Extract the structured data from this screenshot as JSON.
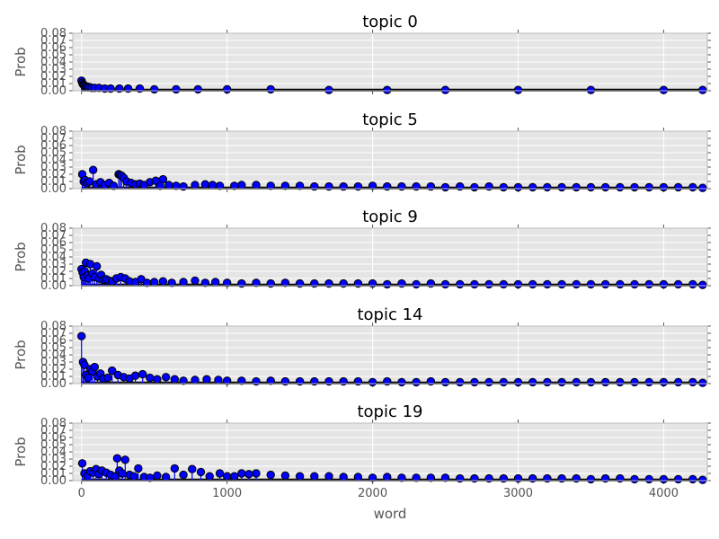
{
  "figure": {
    "xlabel": "word",
    "ylabel": "Prob"
  },
  "chart_data": [
    {
      "type": "stem",
      "title": "topic 0",
      "xlabel": "",
      "ylabel": "Prob",
      "xlim": [
        -60,
        4300
      ],
      "ylim": [
        0.0,
        0.08
      ],
      "yticks": [
        "0.00",
        "0.01",
        "0.02",
        "0.03",
        "0.04",
        "0.05",
        "0.06",
        "0.07",
        "0.08"
      ],
      "xticks": [],
      "grid": true,
      "n_words": 4270,
      "x": [
        0,
        5,
        10,
        15,
        20,
        28,
        36,
        45,
        55,
        70,
        90,
        120,
        160,
        200,
        260,
        320,
        400,
        500,
        650,
        800,
        1000,
        1300,
        1700,
        2100,
        2500,
        3000,
        3500,
        4000,
        4268
      ],
      "values": [
        0.014,
        0.011,
        0.009,
        0.008,
        0.007,
        0.006,
        0.006,
        0.005,
        0.005,
        0.004,
        0.004,
        0.004,
        0.003,
        0.003,
        0.003,
        0.003,
        0.003,
        0.002,
        0.002,
        0.002,
        0.002,
        0.002,
        0.001,
        0.001,
        0.001,
        0.001,
        0.001,
        0.001,
        0.001
      ]
    },
    {
      "type": "stem",
      "title": "topic 5",
      "xlabel": "",
      "ylabel": "Prob",
      "xlim": [
        -60,
        4300
      ],
      "ylim": [
        0.0,
        0.08
      ],
      "yticks": [
        "0.00",
        "0.01",
        "0.02",
        "0.03",
        "0.04",
        "0.05",
        "0.06",
        "0.07",
        "0.08"
      ],
      "xticks": [],
      "grid": true,
      "n_words": 4270,
      "x": [
        5,
        15,
        25,
        40,
        55,
        80,
        100,
        130,
        160,
        190,
        220,
        255,
        265,
        275,
        290,
        310,
        340,
        370,
        400,
        430,
        470,
        510,
        540,
        560,
        600,
        650,
        700,
        780,
        850,
        900,
        950,
        1050,
        1100,
        1200,
        1300,
        1400,
        1500,
        1600,
        1700,
        1800,
        1900,
        2000,
        2100,
        2200,
        2300,
        2400,
        2500,
        2600,
        2700,
        2800,
        2900,
        3000,
        3100,
        3200,
        3300,
        3400,
        3500,
        3600,
        3700,
        3800,
        3900,
        4000,
        4100,
        4200,
        4268
      ],
      "values": [
        0.02,
        0.01,
        0.012,
        0.008,
        0.01,
        0.026,
        0.006,
        0.009,
        0.005,
        0.008,
        0.004,
        0.02,
        0.019,
        0.018,
        0.015,
        0.01,
        0.008,
        0.006,
        0.007,
        0.005,
        0.009,
        0.011,
        0.004,
        0.013,
        0.005,
        0.004,
        0.003,
        0.005,
        0.006,
        0.005,
        0.004,
        0.004,
        0.005,
        0.005,
        0.004,
        0.004,
        0.004,
        0.003,
        0.003,
        0.003,
        0.003,
        0.004,
        0.003,
        0.003,
        0.003,
        0.003,
        0.002,
        0.003,
        0.002,
        0.003,
        0.002,
        0.002,
        0.002,
        0.002,
        0.002,
        0.002,
        0.002,
        0.002,
        0.002,
        0.002,
        0.002,
        0.002,
        0.002,
        0.002,
        0.001
      ]
    },
    {
      "type": "stem",
      "title": "topic 9",
      "xlabel": "",
      "ylabel": "Prob",
      "xlim": [
        -60,
        4300
      ],
      "ylim": [
        0.0,
        0.08
      ],
      "yticks": [
        "0.00",
        "0.01",
        "0.02",
        "0.03",
        "0.04",
        "0.05",
        "0.06",
        "0.07",
        "0.08"
      ],
      "xticks": [],
      "grid": true,
      "n_words": 4270,
      "x": [
        0,
        8,
        15,
        22,
        30,
        40,
        50,
        60,
        75,
        90,
        105,
        120,
        135,
        150,
        170,
        190,
        210,
        240,
        270,
        300,
        330,
        370,
        410,
        450,
        500,
        560,
        620,
        700,
        780,
        850,
        920,
        1000,
        1100,
        1200,
        1300,
        1400,
        1500,
        1600,
        1700,
        1800,
        1900,
        2000,
        2100,
        2200,
        2300,
        2400,
        2500,
        2600,
        2700,
        2800,
        2900,
        3000,
        3100,
        3200,
        3300,
        3400,
        3500,
        3600,
        3700,
        3800,
        3900,
        4000,
        4100,
        4200,
        4268
      ],
      "values": [
        0.023,
        0.018,
        0.012,
        0.02,
        0.032,
        0.014,
        0.01,
        0.03,
        0.017,
        0.012,
        0.027,
        0.01,
        0.015,
        0.008,
        0.009,
        0.007,
        0.006,
        0.01,
        0.012,
        0.01,
        0.006,
        0.005,
        0.009,
        0.004,
        0.005,
        0.006,
        0.004,
        0.005,
        0.007,
        0.004,
        0.005,
        0.004,
        0.003,
        0.004,
        0.003,
        0.004,
        0.003,
        0.003,
        0.003,
        0.003,
        0.003,
        0.003,
        0.002,
        0.003,
        0.002,
        0.003,
        0.002,
        0.002,
        0.002,
        0.002,
        0.002,
        0.002,
        0.002,
        0.002,
        0.002,
        0.002,
        0.002,
        0.002,
        0.002,
        0.002,
        0.002,
        0.002,
        0.002,
        0.002,
        0.001
      ]
    },
    {
      "type": "stem",
      "title": "topic 14",
      "xlabel": "",
      "ylabel": "Prob",
      "xlim": [
        -60,
        4300
      ],
      "ylim": [
        0.0,
        0.08
      ],
      "yticks": [
        "0.00",
        "0.01",
        "0.02",
        "0.03",
        "0.04",
        "0.05",
        "0.06",
        "0.07",
        "0.08"
      ],
      "xticks": [],
      "grid": true,
      "n_words": 4270,
      "x": [
        0,
        10,
        20,
        30,
        45,
        60,
        75,
        90,
        110,
        130,
        150,
        180,
        210,
        250,
        290,
        330,
        370,
        420,
        470,
        520,
        580,
        640,
        700,
        780,
        860,
        940,
        1000,
        1100,
        1200,
        1300,
        1400,
        1500,
        1600,
        1700,
        1800,
        1900,
        2000,
        2100,
        2200,
        2300,
        2400,
        2500,
        2600,
        2700,
        2800,
        2900,
        3000,
        3100,
        3200,
        3300,
        3400,
        3500,
        3600,
        3700,
        3800,
        3900,
        4000,
        4100,
        4200,
        4268
      ],
      "values": [
        0.066,
        0.03,
        0.026,
        0.012,
        0.008,
        0.02,
        0.017,
        0.023,
        0.01,
        0.014,
        0.007,
        0.008,
        0.018,
        0.012,
        0.009,
        0.007,
        0.011,
        0.013,
        0.008,
        0.006,
        0.009,
        0.006,
        0.004,
        0.005,
        0.006,
        0.005,
        0.004,
        0.004,
        0.003,
        0.004,
        0.003,
        0.003,
        0.003,
        0.003,
        0.003,
        0.003,
        0.002,
        0.003,
        0.002,
        0.002,
        0.003,
        0.002,
        0.002,
        0.002,
        0.002,
        0.002,
        0.002,
        0.002,
        0.002,
        0.002,
        0.002,
        0.002,
        0.002,
        0.002,
        0.002,
        0.002,
        0.002,
        0.002,
        0.002,
        0.001
      ]
    },
    {
      "type": "stem",
      "title": "topic 19",
      "xlabel": "word",
      "ylabel": "Prob",
      "xlim": [
        -60,
        4300
      ],
      "ylim": [
        0.0,
        0.08
      ],
      "yticks": [
        "0.00",
        "0.01",
        "0.02",
        "0.03",
        "0.04",
        "0.05",
        "0.06",
        "0.07",
        "0.08"
      ],
      "xticks": [
        "0",
        "1000",
        "2000",
        "3000",
        "4000"
      ],
      "xtick_values": [
        0,
        1000,
        2000,
        3000,
        4000
      ],
      "grid": true,
      "n_words": 4270,
      "x": [
        5,
        20,
        40,
        60,
        80,
        100,
        120,
        140,
        170,
        200,
        230,
        245,
        260,
        280,
        300,
        330,
        360,
        390,
        430,
        470,
        520,
        580,
        640,
        700,
        760,
        820,
        880,
        950,
        1000,
        1050,
        1100,
        1150,
        1200,
        1300,
        1400,
        1500,
        1600,
        1700,
        1800,
        1900,
        2000,
        2100,
        2200,
        2300,
        2400,
        2500,
        2600,
        2700,
        2800,
        2900,
        3000,
        3100,
        3200,
        3300,
        3400,
        3500,
        3600,
        3700,
        3800,
        3900,
        4000,
        4100,
        4200,
        4268
      ],
      "values": [
        0.024,
        0.01,
        0.006,
        0.013,
        0.011,
        0.016,
        0.009,
        0.014,
        0.011,
        0.008,
        0.006,
        0.031,
        0.014,
        0.01,
        0.029,
        0.008,
        0.006,
        0.017,
        0.005,
        0.004,
        0.007,
        0.005,
        0.017,
        0.008,
        0.016,
        0.012,
        0.006,
        0.01,
        0.006,
        0.006,
        0.01,
        0.009,
        0.01,
        0.008,
        0.007,
        0.006,
        0.006,
        0.006,
        0.005,
        0.005,
        0.004,
        0.005,
        0.004,
        0.004,
        0.004,
        0.004,
        0.003,
        0.003,
        0.003,
        0.003,
        0.003,
        0.003,
        0.003,
        0.003,
        0.003,
        0.002,
        0.003,
        0.003,
        0.002,
        0.002,
        0.002,
        0.002,
        0.002,
        0.001
      ]
    }
  ]
}
